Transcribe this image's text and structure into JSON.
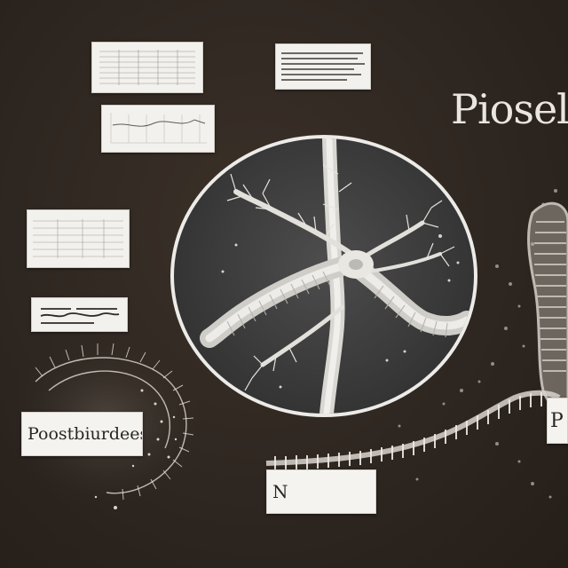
{
  "title": "Piosel",
  "labels": {
    "left_caption": "Poostbiurdees",
    "right_partial": "P",
    "bottom_card": "N"
  },
  "colors": {
    "background": "#2e2620",
    "card": "#f2f1ee",
    "specimen": "#e8e6e2"
  }
}
